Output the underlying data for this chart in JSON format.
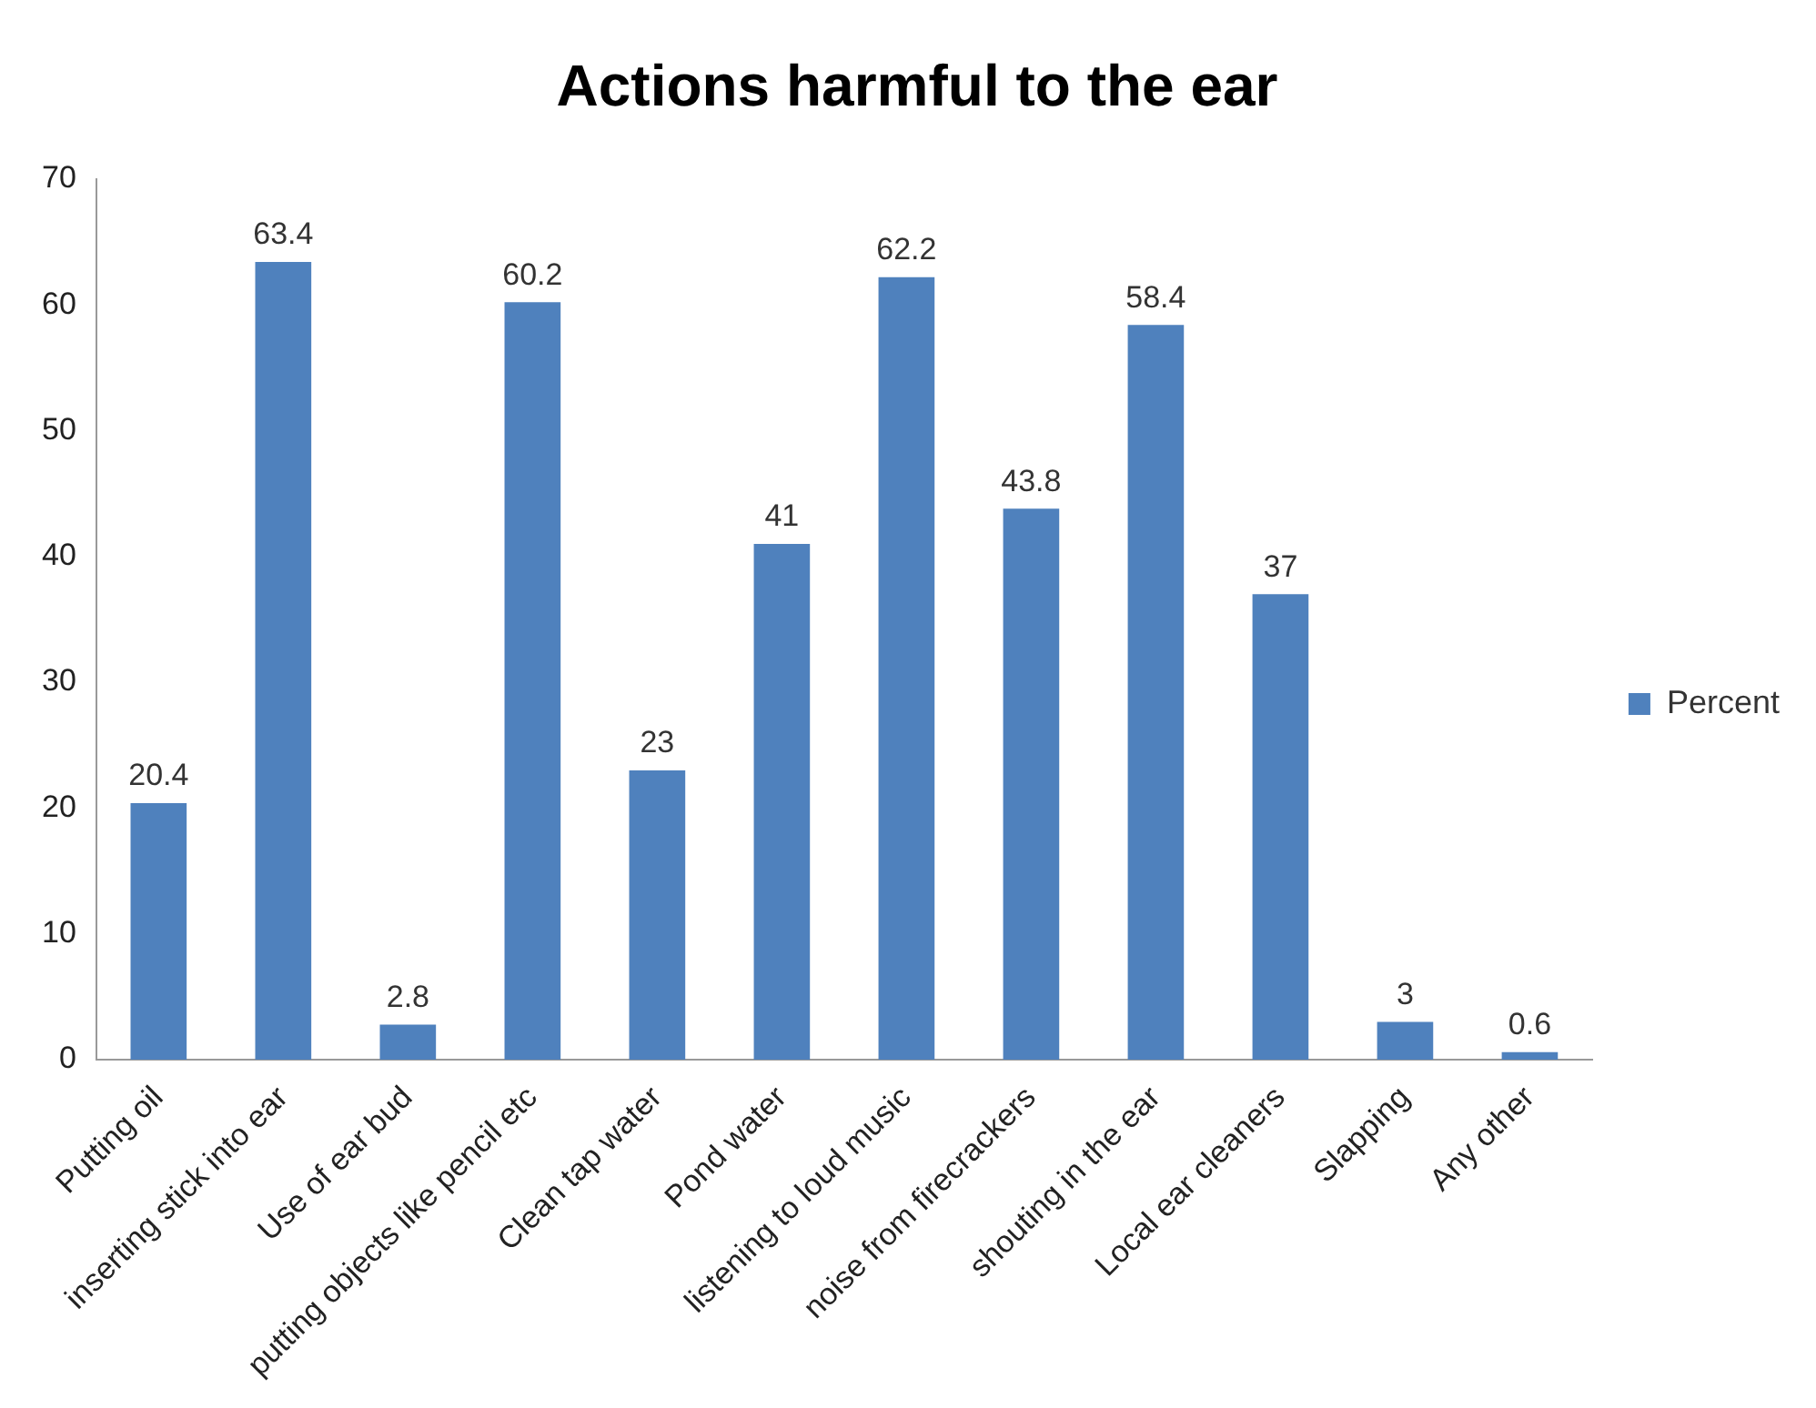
{
  "chart_data": {
    "type": "bar",
    "title": "Actions harmful to the ear",
    "categories": [
      "Putting oil",
      "inserting stick into ear",
      "Use of ear bud",
      "putting objects like pencil etc",
      "Clean tap water",
      "Pond water",
      "listening to loud music",
      "noise from firecrackers",
      "shouting in the ear",
      "Local ear cleaners",
      "Slapping",
      "Any other"
    ],
    "series": [
      {
        "name": "Percent",
        "color": "#4f81bd",
        "values": [
          20.4,
          63.4,
          2.8,
          60.2,
          23,
          41,
          62.2,
          43.8,
          58.4,
          37,
          3,
          0.6
        ]
      }
    ],
    "ylim": [
      0,
      70
    ],
    "yticks": [
      0,
      10,
      20,
      30,
      40,
      50,
      60,
      70
    ],
    "grid": false,
    "legend": "right",
    "data_labels": true
  }
}
